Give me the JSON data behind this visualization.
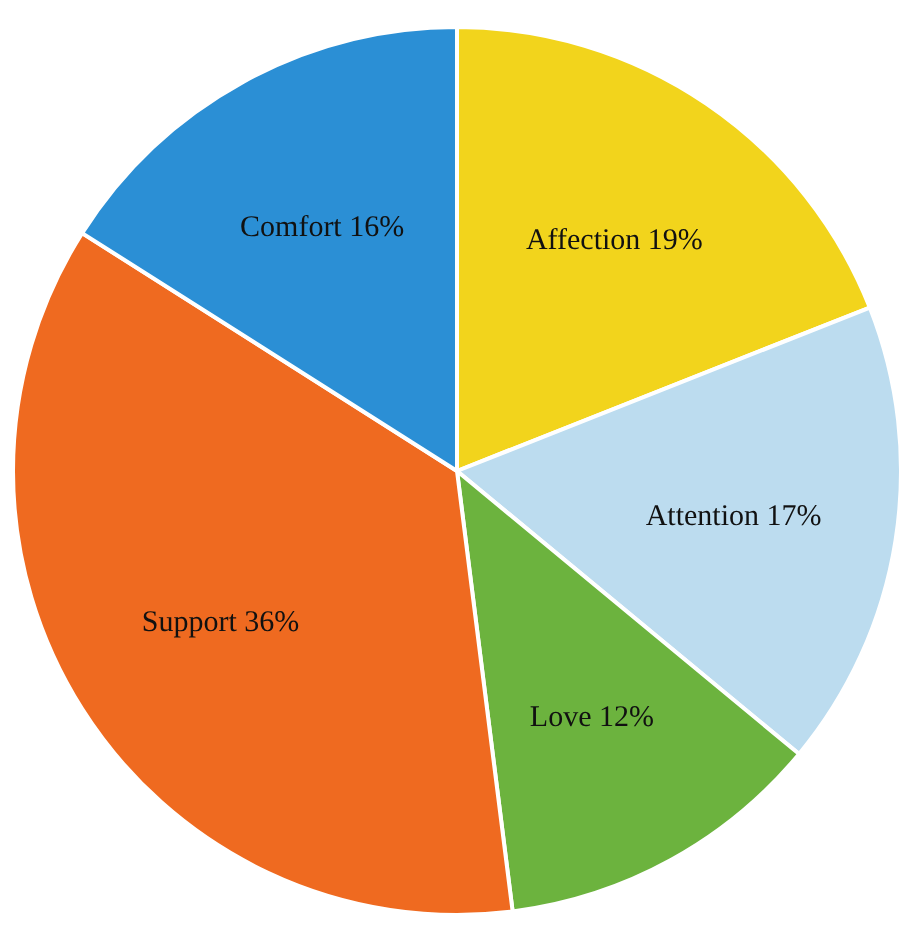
{
  "chart_data": {
    "type": "pie",
    "categories": [
      "Affection",
      "Attention",
      "Love",
      "Support",
      "Comfort"
    ],
    "values": [
      19,
      17,
      12,
      36,
      16
    ],
    "value_labels": [
      "19%",
      "17%",
      "12%",
      "36%",
      "16%"
    ],
    "colors": [
      "#f2d41c",
      "#bcdcef",
      "#6cb33e",
      "#ef6a20",
      "#2b8fd5"
    ],
    "legend": false
  }
}
